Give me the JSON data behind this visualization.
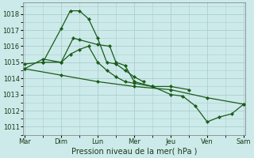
{
  "xlabel": "Pression niveau de la mer( hPa )",
  "bg_color": "#cdeaea",
  "grid_color": "#aacece",
  "line_color": "#1a5c1a",
  "xlim": [
    -0.05,
    6.05
  ],
  "ylim": [
    1010.5,
    1018.7
  ],
  "yticks": [
    1011,
    1012,
    1013,
    1014,
    1015,
    1016,
    1017,
    1018
  ],
  "xtick_pos": [
    0,
    1,
    2,
    3,
    4,
    5,
    6
  ],
  "xtick_labels": [
    "Mar",
    "Dim",
    "Lun",
    "Mer",
    "Jeu",
    "Ven",
    "Sam"
  ],
  "series": [
    {
      "x": [
        0,
        1,
        2,
        3,
        4,
        5,
        6
      ],
      "y": [
        1014.6,
        1014.2,
        1013.8,
        1013.5,
        1013.3,
        1012.8,
        1012.4
      ]
    },
    {
      "x": [
        0,
        0.5,
        1.0,
        1.25,
        1.5,
        1.75,
        2.0,
        2.25,
        2.5,
        2.75,
        3.0,
        3.5,
        4.0,
        4.33,
        4.67,
        5.0,
        5.33,
        5.67,
        6.0
      ],
      "y": [
        1014.9,
        1015.0,
        1015.0,
        1015.5,
        1015.8,
        1016.0,
        1015.0,
        1014.5,
        1014.1,
        1013.8,
        1013.7,
        1013.5,
        1013.0,
        1012.9,
        1012.3,
        1011.3,
        1011.6,
        1011.8,
        1012.4
      ]
    },
    {
      "x": [
        0,
        0.5,
        1.0,
        1.33,
        1.5,
        2.0,
        2.33,
        2.5,
        2.75,
        3.0,
        3.5,
        4.0,
        4.5
      ],
      "y": [
        1014.6,
        1015.2,
        1015.0,
        1016.5,
        1016.4,
        1016.1,
        1016.0,
        1015.0,
        1014.8,
        1013.8,
        1013.5,
        1013.5,
        1013.3
      ]
    },
    {
      "x": [
        0.5,
        1.0,
        1.25,
        1.5,
        1.75,
        2.0,
        2.25,
        2.5,
        2.75,
        3.0,
        3.25
      ],
      "y": [
        1015.0,
        1017.1,
        1018.2,
        1018.2,
        1017.7,
        1016.5,
        1015.0,
        1014.9,
        1014.5,
        1014.1,
        1013.8
      ]
    }
  ]
}
